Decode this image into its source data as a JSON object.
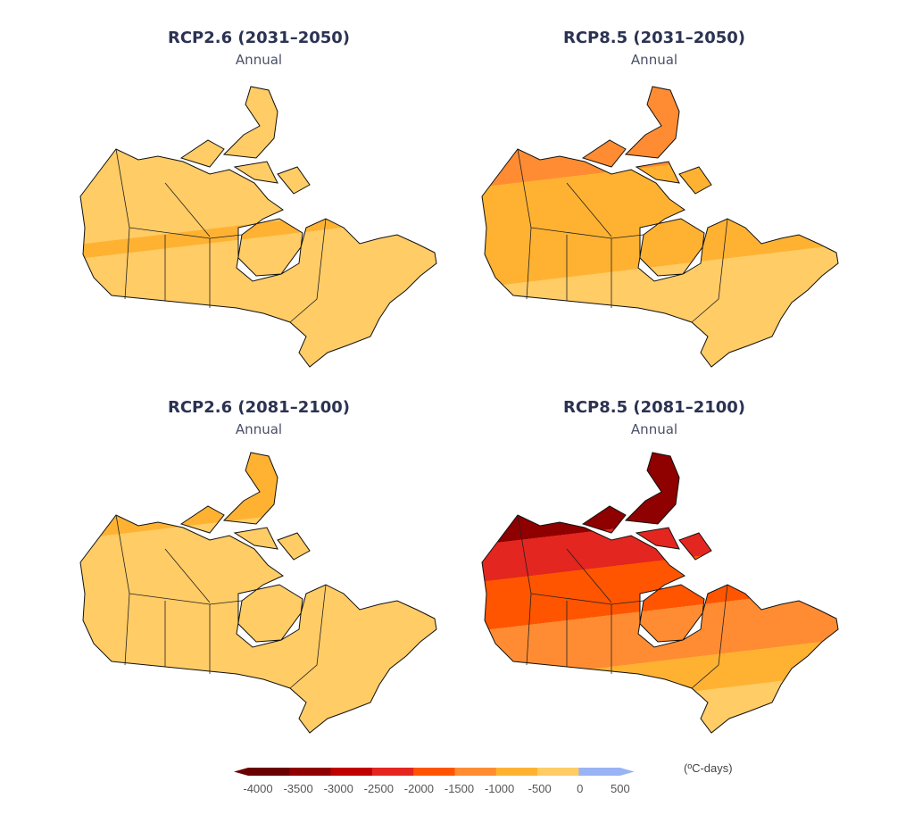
{
  "panels": [
    {
      "title": "RCP2.6 (2031–2050)",
      "subtitle": "Annual"
    },
    {
      "title": "RCP8.5 (2031–2050)",
      "subtitle": "Annual"
    },
    {
      "title": "RCP2.6 (2081–2100)",
      "subtitle": "Annual"
    },
    {
      "title": "RCP8.5 (2081–2100)",
      "subtitle": "Annual"
    }
  ],
  "colorbar": {
    "unit": "(ºC-days)",
    "ticks": [
      "-4000",
      "-3500",
      "-3000",
      "-2500",
      "-2000",
      "-1500",
      "-1000",
      "-500",
      "0",
      "500"
    ],
    "colors": [
      "#6b0000",
      "#8f0000",
      "#c00000",
      "#e3261f",
      "#ff5500",
      "#ff8c33",
      "#ffb232",
      "#ffcc66",
      "#99b3f5"
    ]
  }
}
